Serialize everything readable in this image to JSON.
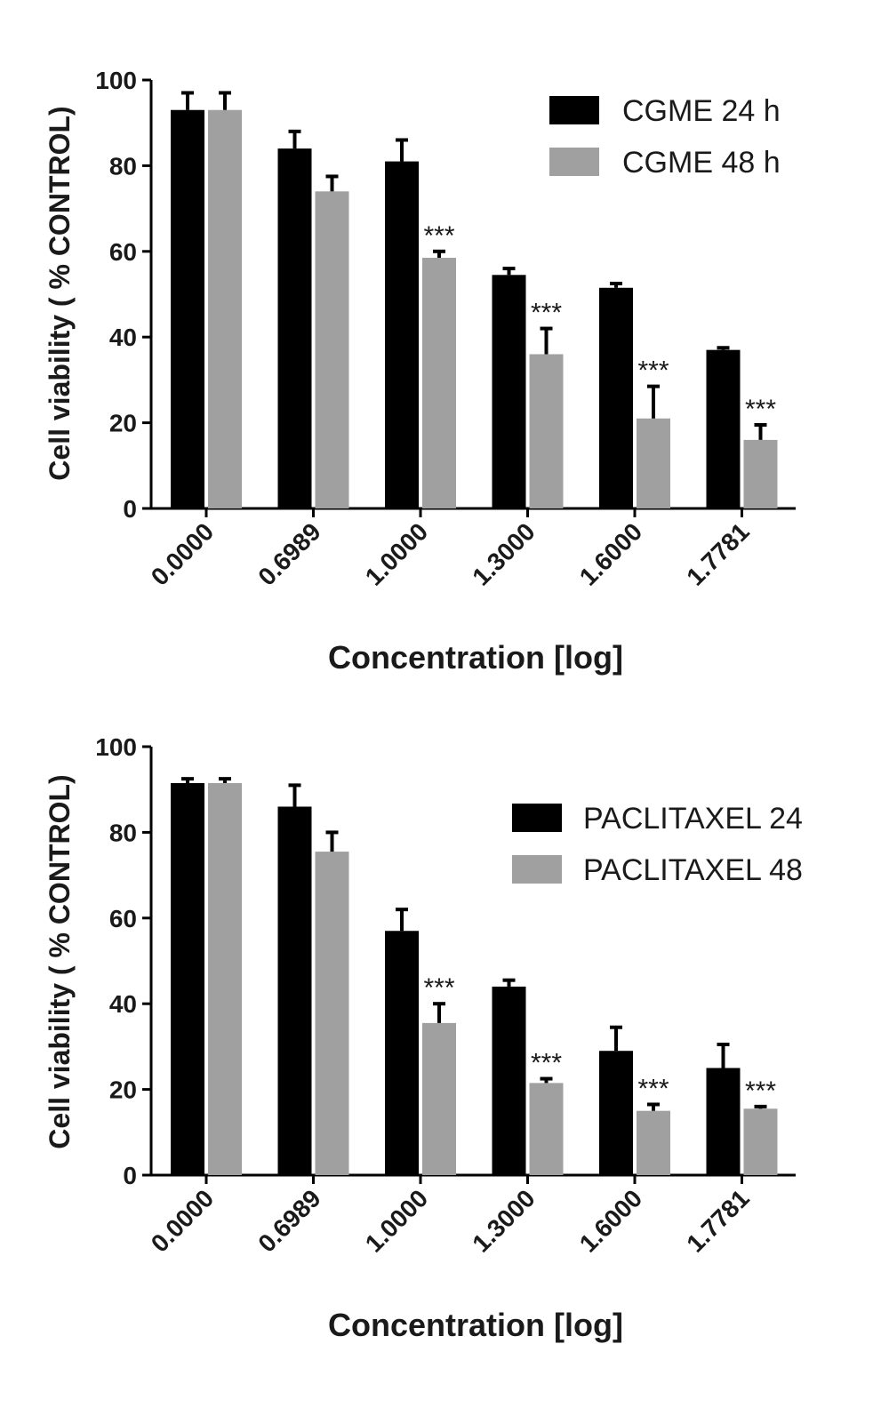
{
  "chart_data": [
    {
      "type": "bar",
      "categories": [
        "0.0000",
        "0.6989",
        "1.0000",
        "1.3000",
        "1.6000",
        "1.7781"
      ],
      "xlabel": "Concentration [log]",
      "ylabel": "Cell viability ( % CONTROL)",
      "ylim": [
        0,
        100
      ],
      "yticks": [
        "0",
        "20",
        "40",
        "60",
        "80",
        "100"
      ],
      "legend_position": "top-right",
      "grid": false,
      "series": [
        {
          "name": "CGME 24 h",
          "color": "#000000",
          "values": [
            93,
            84,
            81,
            54.5,
            51.5,
            37
          ],
          "errors": [
            4,
            4,
            5,
            1.5,
            1,
            0.5
          ]
        },
        {
          "name": "CGME 48 h",
          "color": "#a0a0a0",
          "values": [
            93,
            74,
            58.5,
            36,
            21,
            16
          ],
          "errors": [
            4,
            3.5,
            1.5,
            6,
            7.5,
            3.5
          ]
        }
      ],
      "annotations": [
        {
          "category": "1.0000",
          "series": 1,
          "text": "***"
        },
        {
          "category": "1.3000",
          "series": 1,
          "text": "***"
        },
        {
          "category": "1.6000",
          "series": 1,
          "text": "***"
        },
        {
          "category": "1.7781",
          "series": 1,
          "text": "***"
        }
      ]
    },
    {
      "type": "bar",
      "categories": [
        "0.0000",
        "0.6989",
        "1.0000",
        "1.3000",
        "1.6000",
        "1.7781"
      ],
      "xlabel": "Concentration [log]",
      "ylabel": "Cell viability ( % CONTROL)",
      "ylim": [
        0,
        100
      ],
      "yticks": [
        "0",
        "20",
        "40",
        "60",
        "80",
        "100"
      ],
      "legend_position": "top-right",
      "grid": false,
      "series": [
        {
          "name": "PACLITAXEL 24",
          "color": "#000000",
          "values": [
            91.5,
            86,
            57,
            44,
            29,
            25
          ],
          "errors": [
            1,
            5,
            5,
            1.5,
            5.5,
            5.5
          ]
        },
        {
          "name": "PACLITAXEL 48",
          "color": "#a0a0a0",
          "values": [
            91.5,
            75.5,
            35.5,
            21.5,
            15,
            15.5
          ],
          "errors": [
            1,
            4.5,
            4.5,
            1,
            1.5,
            0.5
          ]
        }
      ],
      "annotations": [
        {
          "category": "1.0000",
          "series": 1,
          "text": "***"
        },
        {
          "category": "1.3000",
          "series": 1,
          "text": "***"
        },
        {
          "category": "1.6000",
          "series": 1,
          "text": "***"
        },
        {
          "category": "1.7781",
          "series": 1,
          "text": "***"
        }
      ]
    }
  ]
}
